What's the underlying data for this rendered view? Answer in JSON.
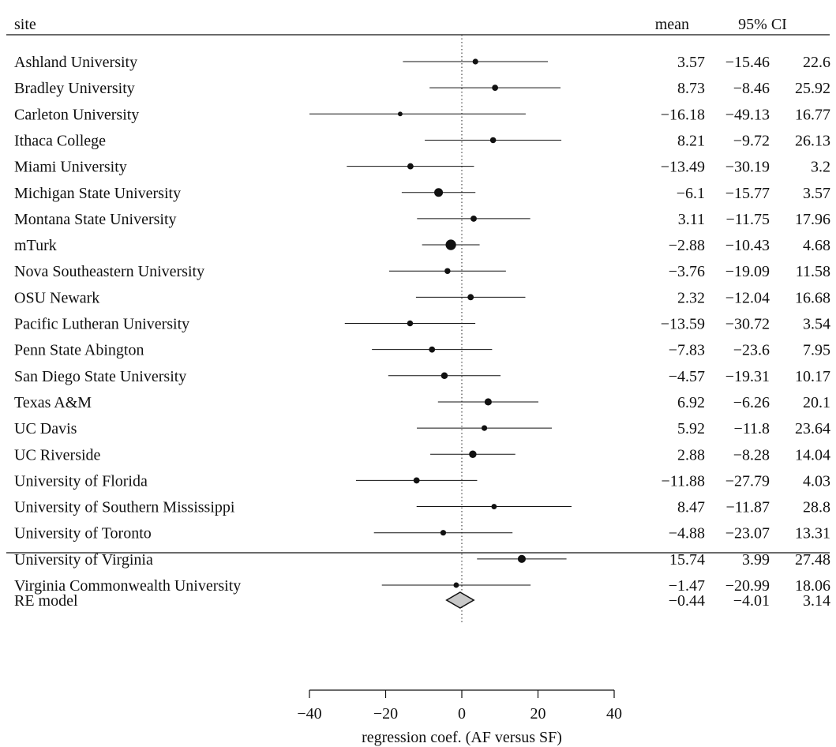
{
  "chart_data": {
    "type": "forest",
    "headers": {
      "site": "site",
      "mean": "mean",
      "ci": "95% CI"
    },
    "xlabel": "regression coef. (AF versus SF)",
    "xlim": [
      -40,
      40
    ],
    "xticks": [
      -40,
      -20,
      0,
      20,
      40
    ],
    "xtick_labels": [
      "−40",
      "−20",
      "0",
      "20",
      "40"
    ],
    "reference_line": 0,
    "rows": [
      {
        "site": "Ashland University",
        "mean": 3.57,
        "lo": -15.46,
        "hi": 22.6,
        "mean_label": "3.57",
        "lo_label": "−15.46",
        "hi_label": "22.6",
        "weight": 1.0
      },
      {
        "site": "Bradley University",
        "mean": 8.73,
        "lo": -8.46,
        "hi": 25.92,
        "mean_label": "8.73",
        "lo_label": "−8.46",
        "hi_label": "25.92",
        "weight": 1.2
      },
      {
        "site": "Carleton University",
        "mean": -16.18,
        "lo": -49.13,
        "hi": 16.77,
        "mean_label": "−16.18",
        "lo_label": "−49.13",
        "hi_label": "16.77",
        "weight": 0.6
      },
      {
        "site": "Ithaca College",
        "mean": 8.21,
        "lo": -9.72,
        "hi": 26.13,
        "mean_label": "8.21",
        "lo_label": "−9.72",
        "hi_label": "26.13",
        "weight": 1.1
      },
      {
        "site": "Miami University",
        "mean": -13.49,
        "lo": -30.19,
        "hi": 3.2,
        "mean_label": "−13.49",
        "lo_label": "−30.19",
        "hi_label": "3.2",
        "weight": 1.2
      },
      {
        "site": "Michigan State University",
        "mean": -6.1,
        "lo": -15.77,
        "hi": 3.57,
        "mean_label": "−6.1",
        "lo_label": "−15.77",
        "hi_label": "3.57",
        "weight": 2.2
      },
      {
        "site": "Montana State University",
        "mean": 3.11,
        "lo": -11.75,
        "hi": 17.96,
        "mean_label": "3.11",
        "lo_label": "−11.75",
        "hi_label": "17.96",
        "weight": 1.2
      },
      {
        "site": "mTurk",
        "mean": -2.88,
        "lo": -10.43,
        "hi": 4.68,
        "mean_label": "−2.88",
        "lo_label": "−10.43",
        "hi_label": "4.68",
        "weight": 2.9
      },
      {
        "site": "Nova Southeastern University",
        "mean": -3.76,
        "lo": -19.09,
        "hi": 11.58,
        "mean_label": "−3.76",
        "lo_label": "−19.09",
        "hi_label": "11.58",
        "weight": 1.1
      },
      {
        "site": "OSU Newark",
        "mean": 2.32,
        "lo": -12.04,
        "hi": 16.68,
        "mean_label": "2.32",
        "lo_label": "−12.04",
        "hi_label": "16.68",
        "weight": 1.2
      },
      {
        "site": "Pacific Lutheran University",
        "mean": -13.59,
        "lo": -30.72,
        "hi": 3.54,
        "mean_label": "−13.59",
        "lo_label": "−30.72",
        "hi_label": "3.54",
        "weight": 1.1
      },
      {
        "site": "Penn State Abington",
        "mean": -7.83,
        "lo": -23.6,
        "hi": 7.95,
        "mean_label": "−7.83",
        "lo_label": "−23.6",
        "hi_label": "7.95",
        "weight": 1.2
      },
      {
        "site": "San Diego State University",
        "mean": -4.57,
        "lo": -19.31,
        "hi": 10.17,
        "mean_label": "−4.57",
        "lo_label": "−19.31",
        "hi_label": "10.17",
        "weight": 1.4
      },
      {
        "site": "Texas A&M",
        "mean": 6.92,
        "lo": -6.26,
        "hi": 20.1,
        "mean_label": "6.92",
        "lo_label": "−6.26",
        "hi_label": "20.1",
        "weight": 1.6
      },
      {
        "site": "UC Davis",
        "mean": 5.92,
        "lo": -11.8,
        "hi": 23.64,
        "mean_label": "5.92",
        "lo_label": "−11.8",
        "hi_label": "23.64",
        "weight": 1.0
      },
      {
        "site": "UC Riverside",
        "mean": 2.88,
        "lo": -8.28,
        "hi": 14.04,
        "mean_label": "2.88",
        "lo_label": "−8.28",
        "hi_label": "14.04",
        "weight": 1.7
      },
      {
        "site": "University of Florida",
        "mean": -11.88,
        "lo": -27.79,
        "hi": 4.03,
        "mean_label": "−11.88",
        "lo_label": "−27.79",
        "hi_label": "4.03",
        "weight": 1.2
      },
      {
        "site": "University of Southern Mississippi",
        "mean": 8.47,
        "lo": -11.87,
        "hi": 28.8,
        "mean_label": "8.47",
        "lo_label": "−11.87",
        "hi_label": "28.8",
        "weight": 0.9
      },
      {
        "site": "University of Toronto",
        "mean": -4.88,
        "lo": -23.07,
        "hi": 13.31,
        "mean_label": "−4.88",
        "lo_label": "−23.07",
        "hi_label": "13.31",
        "weight": 1.0
      },
      {
        "site": "University of Virginia",
        "mean": 15.74,
        "lo": 3.99,
        "hi": 27.48,
        "mean_label": "15.74",
        "lo_label": "3.99",
        "hi_label": "27.48",
        "weight": 1.9
      },
      {
        "site": "Virginia Commonwealth University",
        "mean": -1.47,
        "lo": -20.99,
        "hi": 18.06,
        "mean_label": "−1.47",
        "lo_label": "−20.99",
        "hi_label": "18.06",
        "weight": 0.9
      }
    ],
    "summary": {
      "label": "RE model",
      "mean": -0.44,
      "lo": -4.01,
      "hi": 3.14,
      "mean_label": "−0.44",
      "lo_label": "−4.01",
      "hi_label": "3.14",
      "fill": "#c8c8c8"
    }
  }
}
